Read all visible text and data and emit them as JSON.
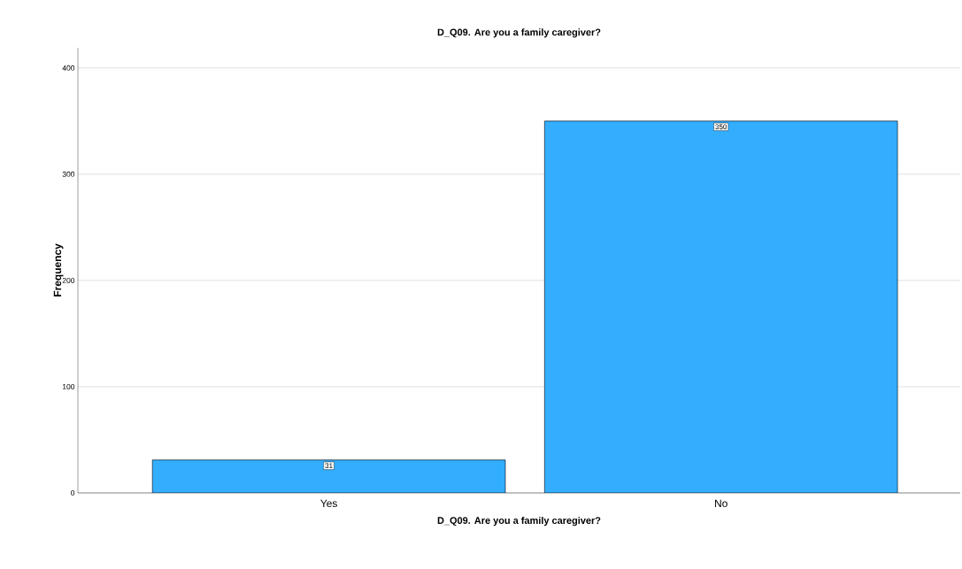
{
  "chart_data": {
    "type": "bar",
    "title": "D_Q09. Are you a family caregiver?",
    "xlabel": "D_Q09. Are you a family caregiver?",
    "ylabel": "Frequency",
    "categories": [
      "Yes",
      "No"
    ],
    "values": [
      31,
      350
    ],
    "color": "#33aeff",
    "ylim": [
      0,
      419
    ],
    "yticks": [
      0,
      100,
      200,
      300,
      400
    ],
    "grid": "y",
    "data_labels": true
  }
}
